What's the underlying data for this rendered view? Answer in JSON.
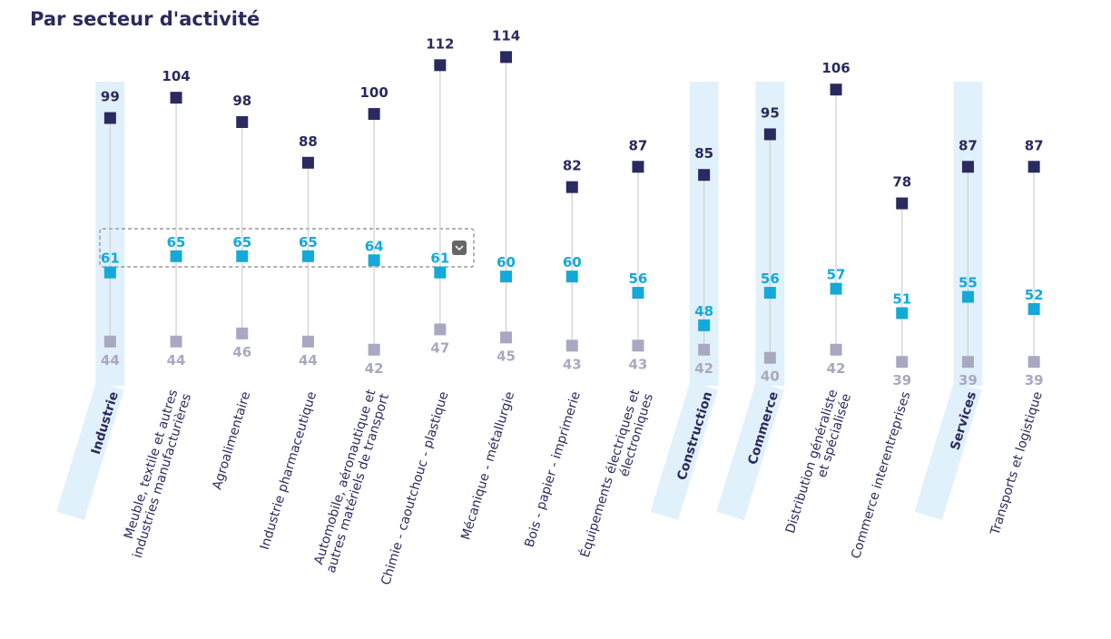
{
  "chart_data": {
    "type": "dot",
    "title": "Par secteur d'activité",
    "categories": [
      "Industrie",
      "Meuble, textile et autres\nindustries manufacturières",
      "Agroalimentaire",
      "Industrie pharmaceutique",
      "Automobile, aéronautique et\nautres matériels de transport",
      "Chimie - caoutchouc - plastique",
      "Mécanique - métallurgie",
      "Bois - papier - imprimerie",
      "Équipements électriques et\nélectroniques",
      "Construction",
      "Commerce",
      "Distribution généraliste\net spécialisée",
      "Commerce interentreprises",
      "Services",
      "Transports et logistique"
    ],
    "highlighted_categories": [
      0,
      9,
      10,
      13
    ],
    "series": [
      {
        "color": "#2b2a5e",
        "values": [
          99,
          104,
          98,
          88,
          100,
          112,
          114,
          82,
          87,
          85,
          95,
          106,
          78,
          87,
          87
        ]
      },
      {
        "color": "#14a9d8",
        "values": [
          61,
          65,
          65,
          65,
          64,
          61,
          60,
          60,
          56,
          48,
          56,
          57,
          51,
          55,
          52
        ]
      },
      {
        "color": "#a9a8c2",
        "values": [
          44,
          44,
          46,
          44,
          42,
          47,
          45,
          43,
          43,
          42,
          40,
          42,
          39,
          39,
          39
        ]
      }
    ],
    "ylim": [
      30,
      120
    ]
  }
}
